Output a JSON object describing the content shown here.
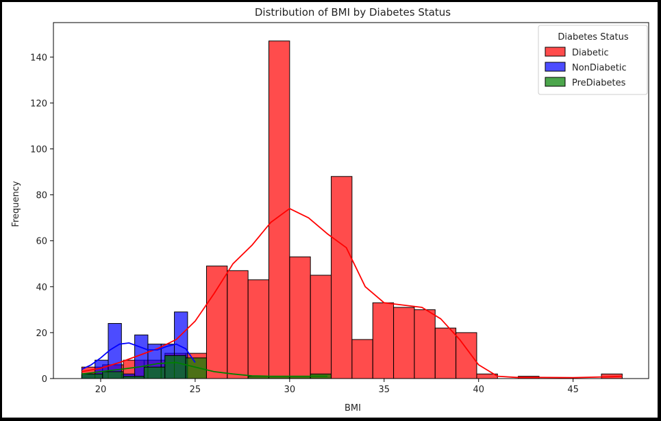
{
  "chart_data": {
    "type": "histogram",
    "title": "Distribution of BMI by Diabetes Status",
    "xlabel": "BMI",
    "ylabel": "Frequency",
    "xlim": [
      17.5,
      49
    ],
    "ylim": [
      0,
      155
    ],
    "xticks": [
      20,
      25,
      30,
      35,
      40,
      45
    ],
    "yticks": [
      0,
      20,
      40,
      60,
      80,
      100,
      120,
      140
    ],
    "grid": false,
    "legend": {
      "title": "Diabetes Status",
      "placement": "top-right"
    },
    "series": [
      {
        "name": "Diabetic",
        "color": "#ff0000",
        "bins": [
          {
            "x0": 19.0,
            "x1": 20.1,
            "count": 5
          },
          {
            "x0": 20.1,
            "x1": 21.2,
            "count": 6
          },
          {
            "x0": 21.2,
            "x1": 22.3,
            "count": 8
          },
          {
            "x0": 22.3,
            "x1": 23.4,
            "count": 8
          },
          {
            "x0": 23.4,
            "x1": 24.5,
            "count": 11
          },
          {
            "x0": 24.5,
            "x1": 25.6,
            "count": 11
          },
          {
            "x0": 25.6,
            "x1": 26.7,
            "count": 49
          },
          {
            "x0": 26.7,
            "x1": 27.8,
            "count": 47
          },
          {
            "x0": 27.8,
            "x1": 28.9,
            "count": 43
          },
          {
            "x0": 28.9,
            "x1": 30.0,
            "count": 147
          },
          {
            "x0": 30.0,
            "x1": 31.1,
            "count": 53
          },
          {
            "x0": 31.1,
            "x1": 32.2,
            "count": 45
          },
          {
            "x0": 32.2,
            "x1": 33.3,
            "count": 88
          },
          {
            "x0": 33.3,
            "x1": 34.4,
            "count": 17
          },
          {
            "x0": 34.4,
            "x1": 35.5,
            "count": 33
          },
          {
            "x0": 35.5,
            "x1": 36.6,
            "count": 31
          },
          {
            "x0": 36.6,
            "x1": 37.7,
            "count": 30
          },
          {
            "x0": 37.7,
            "x1": 38.8,
            "count": 22
          },
          {
            "x0": 38.8,
            "x1": 39.9,
            "count": 20
          },
          {
            "x0": 39.9,
            "x1": 41.0,
            "count": 2
          },
          {
            "x0": 42.1,
            "x1": 43.2,
            "count": 1
          },
          {
            "x0": 46.5,
            "x1": 47.6,
            "count": 2
          }
        ],
        "kde": [
          [
            19,
            3
          ],
          [
            20,
            4.5
          ],
          [
            21,
            7
          ],
          [
            22,
            10
          ],
          [
            23,
            13
          ],
          [
            24,
            17
          ],
          [
            25,
            25
          ],
          [
            26,
            37
          ],
          [
            27,
            50
          ],
          [
            28,
            58
          ],
          [
            29,
            68
          ],
          [
            30,
            74
          ],
          [
            31,
            70
          ],
          [
            32,
            63
          ],
          [
            33,
            57
          ],
          [
            34,
            40
          ],
          [
            35,
            33
          ],
          [
            36,
            32
          ],
          [
            37,
            31
          ],
          [
            38,
            26
          ],
          [
            39,
            17
          ],
          [
            40,
            6
          ],
          [
            41,
            1
          ],
          [
            42,
            0.5
          ],
          [
            43,
            0.5
          ],
          [
            45,
            0.4
          ],
          [
            47,
            0.8
          ],
          [
            47.6,
            1
          ]
        ]
      },
      {
        "name": "NonDiabetic",
        "color": "#0000ff",
        "bins": [
          {
            "x0": 19.0,
            "x1": 19.7,
            "count": 2
          },
          {
            "x0": 19.7,
            "x1": 20.4,
            "count": 8
          },
          {
            "x0": 20.4,
            "x1": 21.1,
            "count": 24
          },
          {
            "x0": 21.1,
            "x1": 21.8,
            "count": 2
          },
          {
            "x0": 21.8,
            "x1": 22.5,
            "count": 19
          },
          {
            "x0": 22.5,
            "x1": 23.2,
            "count": 15
          },
          {
            "x0": 23.2,
            "x1": 23.9,
            "count": 15
          },
          {
            "x0": 23.9,
            "x1": 24.6,
            "count": 29
          }
        ],
        "kde": [
          [
            19,
            4
          ],
          [
            19.5,
            6
          ],
          [
            20,
            9
          ],
          [
            20.5,
            12.5
          ],
          [
            21,
            15
          ],
          [
            21.5,
            15.5
          ],
          [
            22,
            14
          ],
          [
            22.5,
            12.5
          ],
          [
            23,
            12.5
          ],
          [
            23.5,
            14
          ],
          [
            24,
            15
          ],
          [
            24.5,
            13
          ],
          [
            25,
            7
          ]
        ]
      },
      {
        "name": "PreDiabetes",
        "color": "#008000",
        "bins": [
          {
            "x0": 19.0,
            "x1": 20.1,
            "count": 2
          },
          {
            "x0": 20.1,
            "x1": 21.2,
            "count": 3
          },
          {
            "x0": 21.2,
            "x1": 22.3,
            "count": 1
          },
          {
            "x0": 22.3,
            "x1": 23.4,
            "count": 5
          },
          {
            "x0": 23.4,
            "x1": 24.5,
            "count": 10
          },
          {
            "x0": 24.5,
            "x1": 25.6,
            "count": 9
          },
          {
            "x0": 27.8,
            "x1": 28.9,
            "count": 1
          },
          {
            "x0": 28.9,
            "x1": 30.0,
            "count": 1
          },
          {
            "x0": 30.0,
            "x1": 31.1,
            "count": 1
          },
          {
            "x0": 31.1,
            "x1": 32.2,
            "count": 2
          }
        ],
        "kde": [
          [
            19,
            2
          ],
          [
            20,
            3
          ],
          [
            21,
            4
          ],
          [
            22,
            5
          ],
          [
            23,
            6.5
          ],
          [
            24,
            7
          ],
          [
            25,
            5
          ],
          [
            26,
            3
          ],
          [
            27,
            2
          ],
          [
            28,
            1.2
          ],
          [
            29,
            1
          ],
          [
            30,
            1
          ],
          [
            31,
            1
          ],
          [
            32,
            1
          ]
        ]
      }
    ]
  }
}
